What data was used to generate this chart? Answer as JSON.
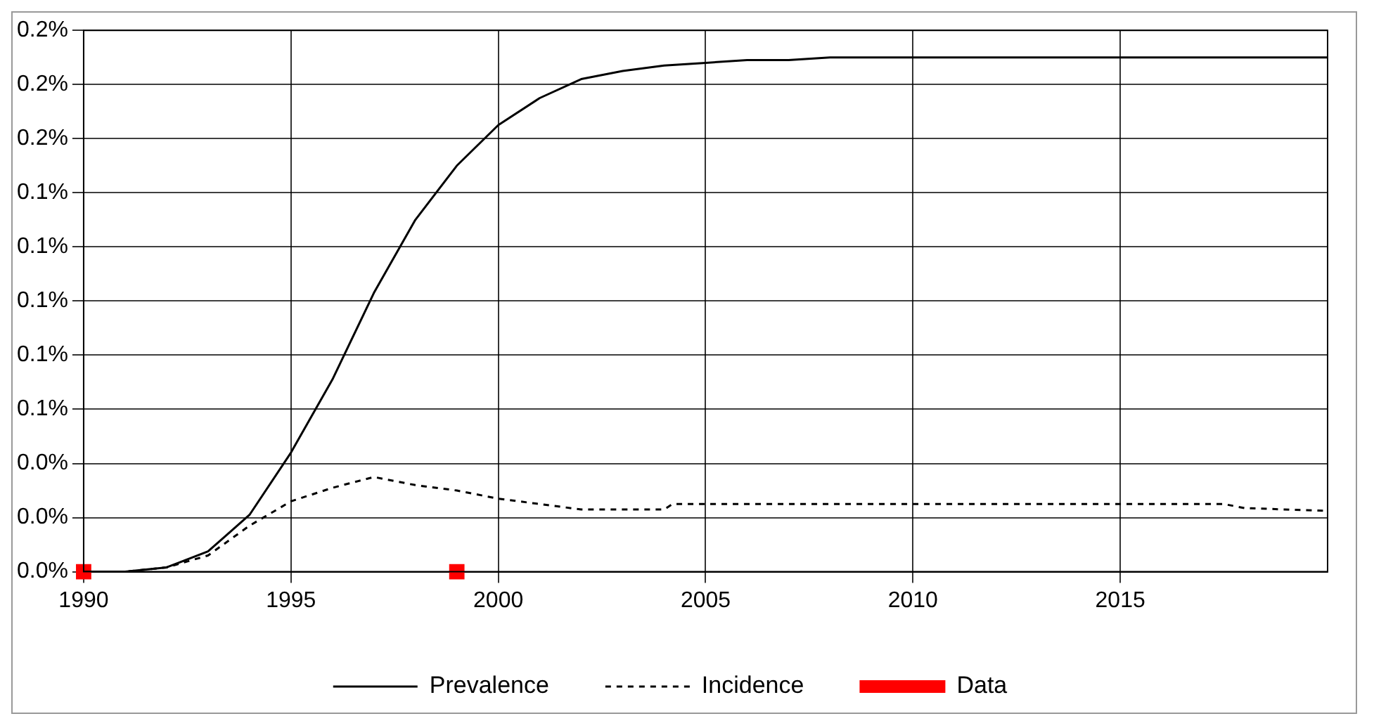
{
  "chart_data": {
    "type": "line",
    "xlim": [
      1990,
      2020
    ],
    "xticks": [
      1990,
      1995,
      2000,
      2005,
      2010,
      2015
    ],
    "ylim": [
      0,
      0.2
    ],
    "yticks": [
      {
        "value": 0,
        "label": "0.0%"
      },
      {
        "value": 0.02,
        "label": "0.0%"
      },
      {
        "value": 0.04,
        "label": "0.0%"
      },
      {
        "value": 0.06,
        "label": "0.1%"
      },
      {
        "value": 0.08,
        "label": "0.1%"
      },
      {
        "value": 0.1,
        "label": "0.1%"
      },
      {
        "value": 0.12,
        "label": "0.1%"
      },
      {
        "value": 0.14,
        "label": "0.1%"
      },
      {
        "value": 0.16,
        "label": "0.2%"
      },
      {
        "value": 0.18,
        "label": "0.2%"
      },
      {
        "value": 0.2,
        "label": "0.2%"
      }
    ],
    "grid": true,
    "legend": "bottom",
    "series": [
      {
        "name": "Prevalence",
        "color": "#000000",
        "line_style": "solid",
        "marker": "none",
        "x": [
          1990,
          1991,
          1992,
          1993,
          1994,
          1995,
          1996,
          1997,
          1998,
          1999,
          2000,
          2001,
          2002,
          2003,
          2004,
          2005,
          2006,
          2007,
          2008,
          2010,
          2015,
          2020
        ],
        "values": [
          0,
          0,
          0.0016,
          0.0075,
          0.021,
          0.044,
          0.071,
          0.103,
          0.13,
          0.15,
          0.165,
          0.175,
          0.182,
          0.185,
          0.187,
          0.188,
          0.189,
          0.189,
          0.19,
          0.19,
          0.19,
          0.19
        ]
      },
      {
        "name": "Incidence",
        "color": "#000000",
        "line_style": "dashed",
        "marker": "none",
        "x": [
          1990,
          1991,
          1992,
          1993,
          1994,
          1995,
          1996,
          1997,
          1998,
          1999,
          2000,
          2001,
          2002,
          2003,
          2004,
          2004.2,
          2010,
          2017.5,
          2018,
          2020
        ],
        "values": [
          0,
          0,
          0.0016,
          0.006,
          0.017,
          0.026,
          0.031,
          0.035,
          0.032,
          0.03,
          0.027,
          0.025,
          0.023,
          0.023,
          0.023,
          0.025,
          0.025,
          0.025,
          0.0235,
          0.0225
        ]
      },
      {
        "name": "Data",
        "type": "scatter",
        "color": "#ff0000",
        "marker": "square",
        "x": [
          1990,
          1999
        ],
        "values": [
          0,
          0
        ]
      }
    ]
  }
}
